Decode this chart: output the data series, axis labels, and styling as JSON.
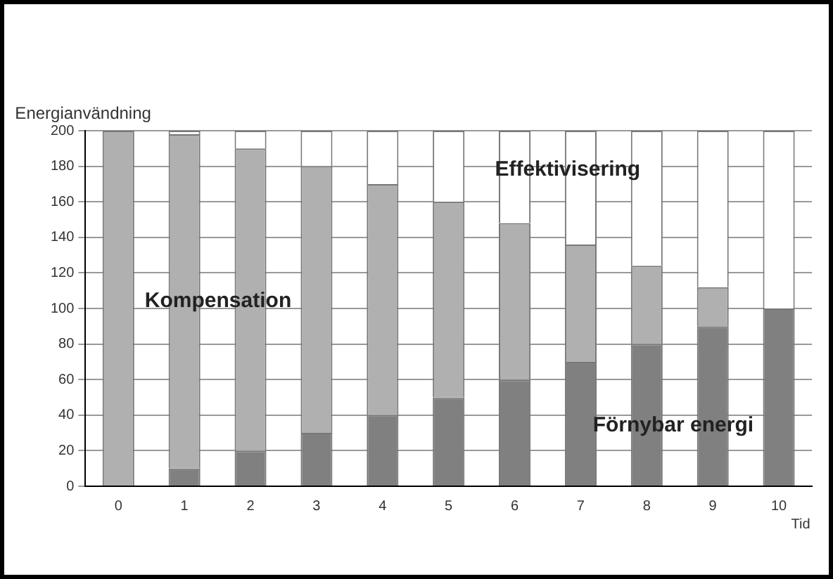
{
  "chart_data": {
    "type": "bar",
    "stacked": true,
    "ylabel": "Energianvändning",
    "xlabel": "Tid",
    "categories": [
      "0",
      "1",
      "2",
      "3",
      "4",
      "5",
      "6",
      "7",
      "8",
      "9",
      "10"
    ],
    "series": [
      {
        "name": "Förnybar energi",
        "color": "#808080",
        "values": [
          0,
          10,
          20,
          30,
          40,
          50,
          60,
          70,
          80,
          90,
          100
        ]
      },
      {
        "name": "Kompensation",
        "color": "#b0b0b0",
        "values": [
          200,
          188,
          170,
          150,
          130,
          110,
          88,
          66,
          44,
          22,
          0
        ]
      },
      {
        "name": "Effektivisering",
        "color": "#ffffff",
        "values": [
          0,
          2,
          10,
          20,
          30,
          40,
          52,
          64,
          76,
          88,
          100
        ]
      }
    ],
    "ylim": [
      0,
      200
    ],
    "yticks": [
      0,
      20,
      40,
      60,
      80,
      100,
      120,
      140,
      160,
      180,
      200
    ],
    "grid": "y",
    "legend": false
  }
}
